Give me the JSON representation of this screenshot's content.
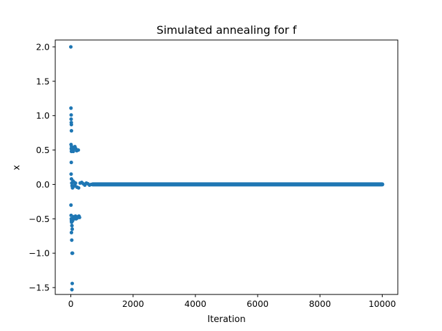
{
  "chart_data": {
    "type": "scatter",
    "title": "Simulated annealing for f",
    "xlabel": "Iteration",
    "ylabel": "x",
    "xlim": [
      -500,
      10500
    ],
    "ylim": [
      -1.6,
      2.1
    ],
    "xticks": [
      0,
      2000,
      4000,
      6000,
      8000,
      10000
    ],
    "xtick_labels": [
      "0",
      "2000",
      "4000",
      "6000",
      "8000",
      "10000"
    ],
    "yticks": [
      -1.5,
      -1.0,
      -0.5,
      0.0,
      0.5,
      1.0,
      1.5,
      2.0
    ],
    "ytick_labels": [
      "−1.5",
      "−1.0",
      "−0.5",
      "0.0",
      "0.5",
      "1.0",
      "1.5",
      "2.0"
    ],
    "grid": false,
    "marker_color": "#1f77b4",
    "series": [
      {
        "points": [
          [
            0,
            2.0
          ],
          [
            5,
            1.11
          ],
          [
            10,
            0.95
          ],
          [
            12,
            1.01
          ],
          [
            15,
            0.9
          ],
          [
            18,
            0.87
          ],
          [
            20,
            0.78
          ],
          [
            8,
            0.58
          ],
          [
            14,
            0.52
          ],
          [
            20,
            0.48
          ],
          [
            25,
            0.55
          ],
          [
            30,
            0.5
          ],
          [
            40,
            0.53
          ],
          [
            60,
            0.51
          ],
          [
            80,
            0.48
          ],
          [
            100,
            0.52
          ],
          [
            130,
            0.55
          ],
          [
            160,
            0.52
          ],
          [
            190,
            0.49
          ],
          [
            240,
            0.5
          ],
          [
            15,
            0.32
          ],
          [
            10,
            0.15
          ],
          [
            20,
            0.08
          ],
          [
            30,
            0.02
          ],
          [
            40,
            -0.02
          ],
          [
            55,
            -0.05
          ],
          [
            70,
            0.05
          ],
          [
            90,
            -0.03
          ],
          [
            110,
            0.03
          ],
          [
            130,
            -0.01
          ],
          [
            150,
            0.02
          ],
          [
            200,
            -0.04
          ],
          [
            250,
            -0.05
          ],
          [
            300,
            0.02
          ],
          [
            350,
            0.03
          ],
          [
            400,
            0.01
          ],
          [
            450,
            -0.01
          ],
          [
            500,
            0.02
          ],
          [
            550,
            0.01
          ],
          [
            600,
            -0.01
          ],
          [
            650,
            0.0
          ],
          [
            700,
            0.0
          ],
          [
            5,
            -0.3
          ],
          [
            10,
            -0.45
          ],
          [
            15,
            -0.5
          ],
          [
            20,
            -0.53
          ],
          [
            25,
            -0.55
          ],
          [
            35,
            -0.6
          ],
          [
            45,
            -0.65
          ],
          [
            55,
            -0.53
          ],
          [
            70,
            -0.5
          ],
          [
            90,
            -0.47
          ],
          [
            110,
            -0.5
          ],
          [
            130,
            -0.48
          ],
          [
            150,
            -0.46
          ],
          [
            170,
            -0.5
          ],
          [
            200,
            -0.49
          ],
          [
            230,
            -0.47
          ],
          [
            260,
            -0.46
          ],
          [
            280,
            -0.48
          ],
          [
            20,
            -0.7
          ],
          [
            30,
            -0.81
          ],
          [
            40,
            -1.0
          ],
          [
            55,
            -1.0
          ],
          [
            45,
            -1.44
          ],
          [
            35,
            -1.53
          ]
        ],
        "dense_segment": {
          "x_range": [
            700,
            10000
          ],
          "y": 0.0
        }
      }
    ]
  }
}
